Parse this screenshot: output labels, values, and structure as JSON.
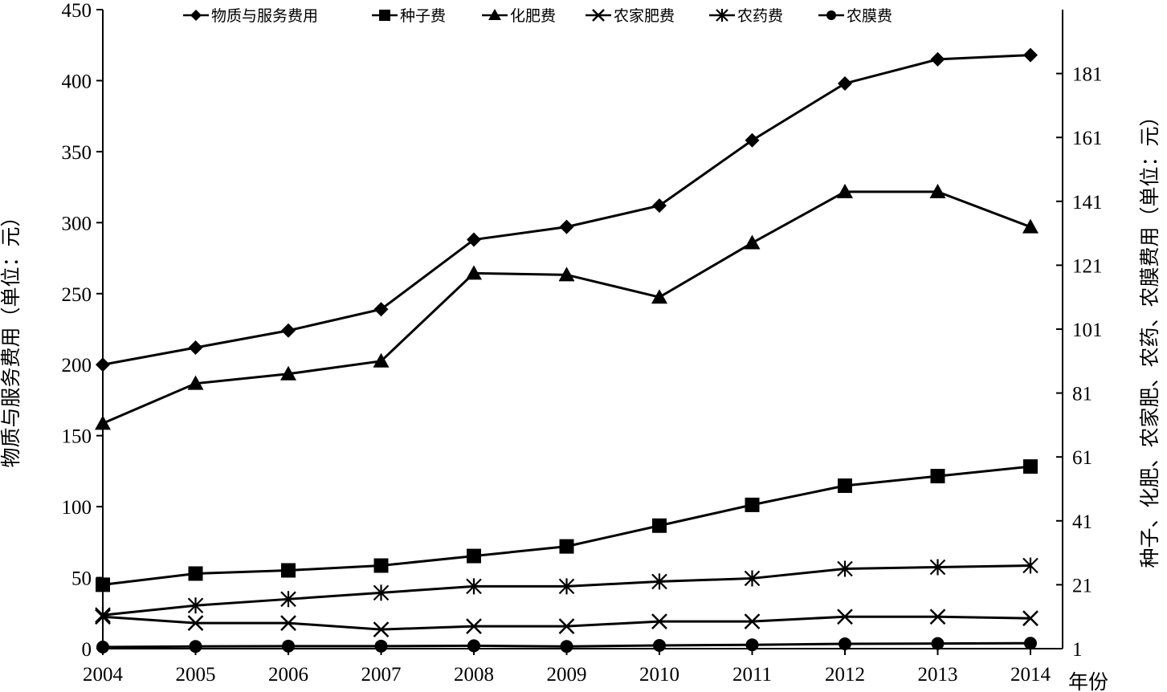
{
  "chart_data": {
    "type": "line",
    "title": "",
    "xlabel": "年份",
    "ylabel_left": "物质与服务费用（单位：元）",
    "ylabel_right": "种子、化肥、农家肥、农药、农膜费用（单位：元）",
    "x": [
      "2004",
      "2005",
      "2006",
      "2007",
      "2008",
      "2009",
      "2010",
      "2011",
      "2012",
      "2013",
      "2014"
    ],
    "ylim_left": [
      0,
      450
    ],
    "yticks_left": [
      "0",
      "50",
      "100",
      "150",
      "200",
      "250",
      "300",
      "350",
      "400",
      "450"
    ],
    "ylim_right": [
      1,
      201
    ],
    "yticks_right": [
      "1",
      "21",
      "41",
      "61",
      "81",
      "101",
      "121",
      "141",
      "161",
      "181"
    ],
    "legend_position": "top",
    "grid": false,
    "series": [
      {
        "name": "物质与服务费用",
        "axis": "left",
        "marker": "diamond",
        "values": [
          200,
          212,
          224,
          239,
          288,
          297,
          312,
          358,
          398,
          415,
          418
        ]
      },
      {
        "name": "种子费",
        "axis": "right",
        "marker": "square",
        "values": [
          21,
          24.5,
          25.5,
          27,
          30,
          33,
          39.5,
          46,
          52,
          55,
          58
        ]
      },
      {
        "name": "化肥费",
        "axis": "right",
        "marker": "triangle",
        "values": [
          71.5,
          84,
          87,
          91,
          118.5,
          118,
          111,
          128,
          144,
          144,
          133
        ]
      },
      {
        "name": "农家肥费",
        "axis": "right",
        "marker": "x",
        "values": [
          11,
          9,
          9,
          7,
          8,
          8,
          9.5,
          9.5,
          11,
          11,
          10.5
        ]
      },
      {
        "name": "农药费",
        "axis": "right",
        "marker": "asterisk",
        "values": [
          11.5,
          14.5,
          16.5,
          18.5,
          20.5,
          20.5,
          22,
          23,
          26,
          26.5,
          27
        ]
      },
      {
        "name": "农膜费",
        "axis": "right",
        "marker": "circle",
        "values": [
          1.5,
          1.7,
          1.8,
          1.8,
          1.9,
          1.7,
          2.0,
          2.2,
          2.5,
          2.6,
          2.7
        ]
      }
    ]
  }
}
